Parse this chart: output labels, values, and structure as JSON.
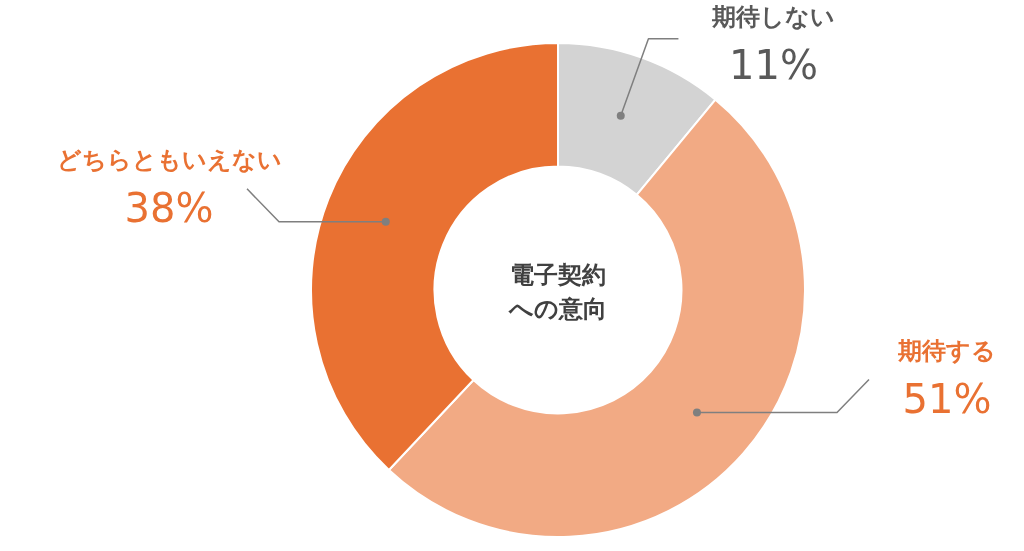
{
  "chart_data": {
    "type": "donut",
    "title": "電子契約への意向",
    "categories": [
      "期待しない",
      "期待する",
      "どちらともいえない"
    ],
    "values": [
      11,
      51,
      38
    ],
    "value_labels": [
      "11%",
      "51%",
      "38%"
    ],
    "colors": [
      "#d3d3d3",
      "#f2aa84",
      "#e97132"
    ],
    "legend": false
  }
}
